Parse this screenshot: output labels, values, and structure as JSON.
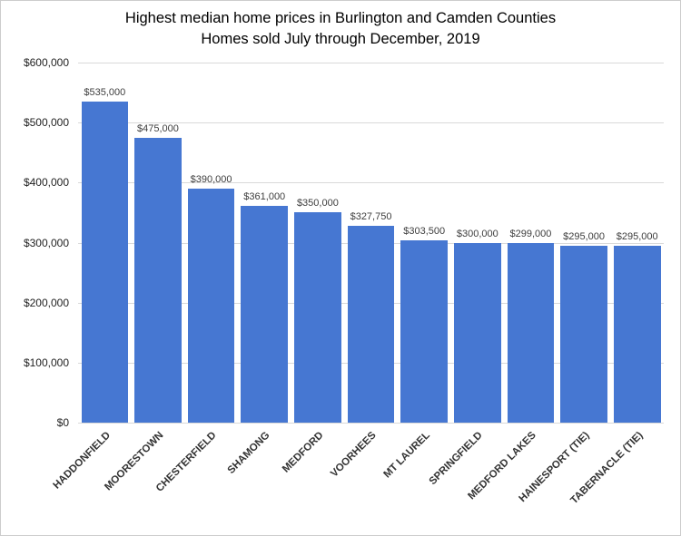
{
  "chart_data": {
    "type": "bar",
    "title": "Highest median home prices in Burlington and Camden Counties",
    "subtitle": "Homes sold July through December, 2019",
    "categories": [
      "HADDONFIELD",
      "MOORESTOWN",
      "CHESTERFIELD",
      "SHAMONG",
      "MEDFORD",
      "VOORHEES",
      "MT LAUREL",
      "SPRINGFIELD",
      "MEDFORD LAKES",
      "HAINESPORT (TIE)",
      "TABERNACLE (TIE)"
    ],
    "values": [
      535000,
      475000,
      390000,
      361000,
      350000,
      327750,
      303500,
      300000,
      299000,
      295000,
      295000
    ],
    "value_labels": [
      "$535,000",
      "$475,000",
      "$390,000",
      "$361,000",
      "$350,000",
      "$327,750",
      "$303,500",
      "$300,000",
      "$299,000",
      "$295,000",
      "$295,000"
    ],
    "xlabel": "",
    "ylabel": "",
    "ylim": [
      0,
      600000
    ],
    "y_ticks": [
      "$600,000",
      "$500,000",
      "$400,000",
      "$300,000",
      "$200,000",
      "$100,000",
      "$0"
    ],
    "grid": true,
    "legend": "none",
    "colors": {
      "bar": "#4677d2",
      "gridline": "#d9d9d9",
      "value_label": "#3d3d3d",
      "axis_label": "#333333",
      "title": "#000000",
      "background": "#ffffff",
      "border": "#cccccc"
    }
  }
}
